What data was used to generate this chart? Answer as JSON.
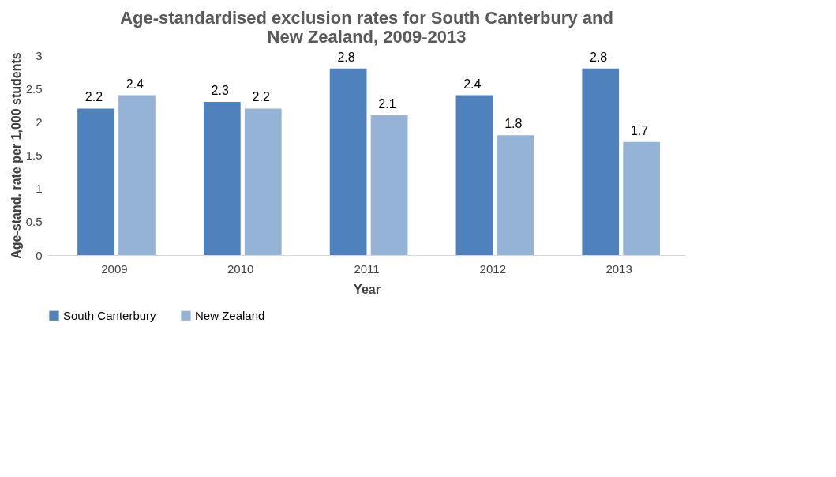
{
  "chart_data": {
    "type": "bar",
    "title": "Age-standardised exclusion rates for South Canterbury and New Zealand, 2009-2013",
    "xlabel": "Year",
    "ylabel": "Age-stand. rate per 1,000 students",
    "categories": [
      "2009",
      "2010",
      "2011",
      "2012",
      "2013"
    ],
    "series": [
      {
        "name": "South Canterbury",
        "color": "#4f81bd",
        "values": [
          2.2,
          2.3,
          2.8,
          2.4,
          2.8
        ]
      },
      {
        "name": "New Zealand",
        "color": "#95b3d7",
        "values": [
          2.4,
          2.2,
          2.1,
          1.8,
          1.7
        ]
      }
    ],
    "ylim": [
      0,
      3
    ],
    "yticks": [
      0,
      0.5,
      1,
      1.5,
      2,
      2.5,
      3
    ],
    "grid": false,
    "legend": "bottom",
    "data_labels": true
  }
}
